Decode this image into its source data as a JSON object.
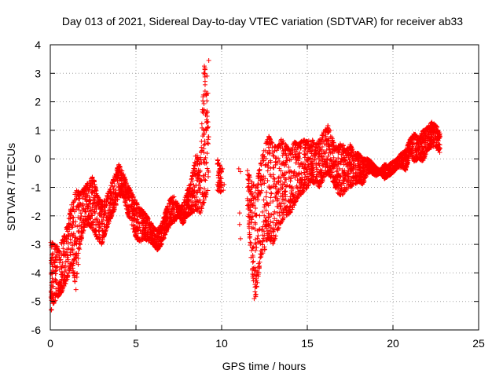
{
  "chart_data": {
    "type": "scatter",
    "title": "Day 013 of 2021, Sidereal Day-to-day VTEC variation (SDTVAR) for receiver ab33",
    "xlabel": "GPS time / hours",
    "ylabel": "SDTVAR / TECUs",
    "xlim": [
      0,
      25
    ],
    "ylim": [
      -6,
      4
    ],
    "xticks": [
      0,
      5,
      10,
      15,
      20,
      25
    ],
    "yticks": [
      -6,
      -5,
      -4,
      -3,
      -2,
      -1,
      0,
      1,
      2,
      3,
      4
    ],
    "grid": true,
    "marker": "+",
    "colors": {
      "series": "#ff0000",
      "grid": "#a0a0a0",
      "axis": "#000000"
    },
    "series": [
      {
        "name": "SDTVAR",
        "envelope_hours": [
          0.0,
          0.25,
          0.5,
          0.75,
          1.0,
          1.25,
          1.5,
          1.75,
          2.0,
          2.25,
          2.5,
          2.75,
          3.0,
          3.25,
          3.5,
          3.75,
          4.0,
          4.25,
          4.5,
          4.75,
          5.0,
          5.25,
          5.5,
          5.75,
          6.0,
          6.25,
          6.5,
          6.75,
          7.0,
          7.25,
          7.5,
          7.75,
          8.0,
          8.25,
          8.5,
          8.75,
          9.0,
          9.25,
          9.5,
          9.75,
          10.0,
          10.25,
          10.5,
          10.75,
          11.0,
          11.25,
          11.5,
          11.75,
          12.0,
          12.25,
          12.5,
          12.75,
          13.0,
          13.25,
          13.5,
          13.75,
          14.0,
          14.25,
          14.5,
          14.75,
          15.0,
          15.25,
          15.5,
          15.75,
          16.0,
          16.25,
          16.5,
          16.75,
          17.0,
          17.25,
          17.5,
          17.75,
          18.0,
          18.25,
          18.5,
          18.75,
          19.0,
          19.25,
          19.5,
          19.75,
          20.0,
          20.25,
          20.5,
          20.75,
          21.0,
          21.25,
          21.5,
          21.75,
          22.0,
          22.25,
          22.5,
          22.75
        ],
        "upper": [
          -2.9,
          -3.0,
          -3.1,
          -2.8,
          -2.3,
          -1.6,
          -1.1,
          -1.2,
          -1.0,
          -0.8,
          -0.6,
          -1.3,
          -1.5,
          -1.4,
          -1.0,
          -0.6,
          -0.2,
          -0.5,
          -0.9,
          -1.2,
          -1.5,
          -1.7,
          -1.9,
          -2.1,
          -2.4,
          -2.5,
          -2.3,
          -1.8,
          -1.4,
          -1.3,
          -1.7,
          -1.6,
          -1.1,
          -0.7,
          0.2,
          -0.1,
          3.5,
          0.8,
          null,
          0.0,
          -0.4,
          null,
          null,
          null,
          null,
          null,
          -0.4,
          -0.8,
          -1.0,
          -0.2,
          0.4,
          0.8,
          0.5,
          0.4,
          0.7,
          0.5,
          0.3,
          0.6,
          0.5,
          0.7,
          0.6,
          0.7,
          0.5,
          0.7,
          1.0,
          1.2,
          0.6,
          0.4,
          0.6,
          0.3,
          0.5,
          0.2,
          0.2,
          0.0,
          0.0,
          -0.1,
          -0.3,
          -0.4,
          -0.2,
          -0.2,
          -0.1,
          0.0,
          0.2,
          0.3,
          0.7,
          0.9,
          0.7,
          1.0,
          1.1,
          1.3,
          1.2,
          0.9
        ],
        "lower": [
          -5.4,
          -5.0,
          -4.8,
          -4.6,
          -4.2,
          -3.7,
          -4.6,
          -3.0,
          -2.4,
          -2.3,
          -2.5,
          -2.8,
          -3.0,
          -2.5,
          -2.1,
          -1.8,
          -1.3,
          -1.3,
          -1.9,
          -2.3,
          -2.8,
          -2.9,
          -2.8,
          -2.9,
          -3.0,
          -3.2,
          -3.0,
          -2.6,
          -2.3,
          -2.2,
          -2.0,
          -2.3,
          -2.0,
          -1.9,
          -1.8,
          -1.9,
          -1.5,
          -1.0,
          null,
          -1.1,
          -1.2,
          null,
          null,
          null,
          null,
          null,
          -1.5,
          -3.8,
          -5.0,
          -3.5,
          -3.2,
          -2.8,
          -3.0,
          -2.6,
          -2.2,
          -2.0,
          -1.9,
          -1.6,
          -1.3,
          -1.2,
          -1.0,
          -0.8,
          -0.9,
          -1.0,
          -0.6,
          -0.5,
          -0.8,
          -1.2,
          -1.3,
          -1.1,
          -1.0,
          -0.9,
          -0.8,
          -0.9,
          -0.5,
          -0.5,
          -0.6,
          -0.5,
          -0.7,
          -0.6,
          -0.5,
          -0.3,
          -0.3,
          -0.4,
          0.2,
          -0.1,
          0.0,
          -0.1,
          0.3,
          0.4,
          0.4,
          0.2
        ]
      }
    ],
    "isolated_points": [
      {
        "x": 10.0,
        "y": -0.45
      },
      {
        "x": 10.05,
        "y": -0.35
      },
      {
        "x": 10.1,
        "y": -1.1
      },
      {
        "x": 10.15,
        "y": -0.9
      },
      {
        "x": 11.0,
        "y": -0.35
      },
      {
        "x": 11.1,
        "y": -0.45
      },
      {
        "x": 11.05,
        "y": -1.9
      },
      {
        "x": 11.1,
        "y": -2.8
      },
      {
        "x": 11.05,
        "y": -2.3
      },
      {
        "x": 9.15,
        "y": 2.9
      },
      {
        "x": 9.2,
        "y": 2.3
      },
      {
        "x": 9.1,
        "y": 1.6
      },
      {
        "x": 9.25,
        "y": 3.45
      },
      {
        "x": 8.9,
        "y": 0.8
      },
      {
        "x": 11.9,
        "y": -4.9
      },
      {
        "x": 11.95,
        "y": -4.5
      }
    ]
  }
}
